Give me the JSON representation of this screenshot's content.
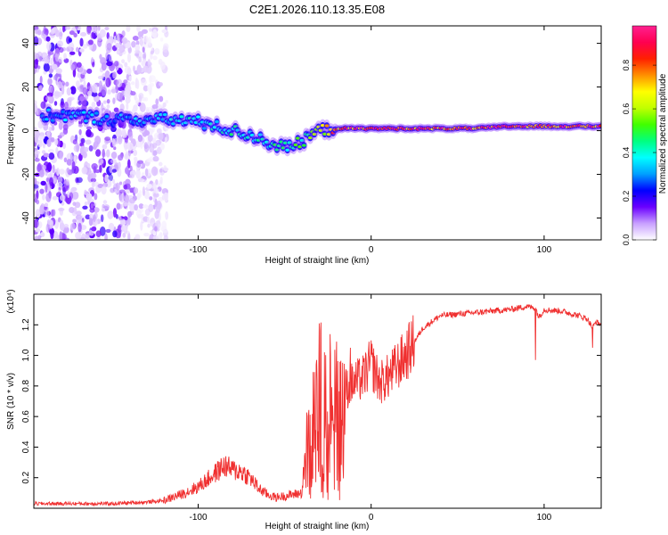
{
  "figure_title": "C2E1.2026.110.13.35.E08",
  "chart_data": [
    {
      "type": "heatmap",
      "title": "C2E1.2026.110.13.35.E08",
      "xlabel": "Height of straight line (km)",
      "ylabel": "Frequency (Hz)",
      "xlim": [
        -195,
        133
      ],
      "ylim": [
        -50,
        48
      ],
      "xticks": [
        -100,
        0,
        100
      ],
      "xtick_labels": [
        "-100",
        "0",
        "100"
      ],
      "yticks": [
        -40,
        -20,
        0,
        20,
        40
      ],
      "ytick_labels": [
        "-40",
        "-20",
        "0",
        "20",
        "40"
      ],
      "colorbar": {
        "label": "Normalized spectral amplitude",
        "range": [
          0,
          0.98
        ],
        "ticks": [
          0.0,
          0.2,
          0.4,
          0.6,
          0.8
        ],
        "tick_labels": [
          "0.0",
          "0.2",
          "0.4",
          "0.6",
          "0.8"
        ],
        "colormap": [
          "#ffffff",
          "#c8a0ff",
          "#6a00ff",
          "#0000ff",
          "#00a0ff",
          "#00ffff",
          "#00ff80",
          "#40ff00",
          "#c0ff00",
          "#ffff00",
          "#ff9000",
          "#ff2000",
          "#ff0050",
          "#ff2090"
        ]
      },
      "ridge_x": [
        -190,
        -175,
        -160,
        -150,
        -140,
        -130,
        -120,
        -110,
        -100,
        -90,
        -80,
        -70,
        -60,
        -50,
        -45,
        -40,
        -35,
        -30,
        -20,
        -10,
        0,
        10,
        20,
        40,
        60,
        80,
        100,
        120,
        133
      ],
      "ridge_freq": [
        7,
        7,
        6,
        5,
        5,
        5,
        5,
        5,
        4,
        2,
        0,
        -2,
        -5,
        -8,
        -7,
        -5,
        -2,
        0,
        1,
        1,
        1,
        1,
        1,
        1,
        1,
        2,
        2,
        2,
        2
      ],
      "ridge_amplitude": [
        0.3,
        0.35,
        0.35,
        0.3,
        0.35,
        0.35,
        0.35,
        0.4,
        0.4,
        0.4,
        0.45,
        0.45,
        0.45,
        0.5,
        0.5,
        0.5,
        0.55,
        0.65,
        0.85,
        0.9,
        0.95,
        0.95,
        0.95,
        0.9,
        0.9,
        0.95,
        0.95,
        0.9,
        0.9
      ],
      "noise_region_x": [
        -195,
        -118
      ]
    },
    {
      "type": "line",
      "title": "",
      "xlabel": "Height of straight line (km)",
      "ylabel": "SNR (10 * v/v)",
      "y_multiplier": "(x10⁴)",
      "xlim": [
        -195,
        133
      ],
      "ylim": [
        0,
        1.4
      ],
      "xticks": [
        -100,
        0,
        100
      ],
      "xtick_labels": [
        "-100",
        "0",
        "100"
      ],
      "yticks": [
        0.2,
        0.4,
        0.6,
        0.8,
        1.0,
        1.2
      ],
      "ytick_labels": [
        "0.2",
        "0.4",
        "0.6",
        "0.8",
        "1.0",
        "1.2"
      ],
      "line_color": "#f03030",
      "series": [
        {
          "name": "SNR",
          "x": [
            -195,
            -150,
            -130,
            -120,
            -110,
            -100,
            -90,
            -85,
            -80,
            -75,
            -70,
            -65,
            -60,
            -55,
            -50,
            -45,
            -40,
            -38,
            -35,
            -30,
            -28,
            -25,
            -20,
            -15,
            -10,
            -5,
            0,
            5,
            10,
            20,
            30,
            40,
            60,
            80,
            90,
            95,
            97,
            100,
            110,
            120,
            125,
            128,
            130,
            133
          ],
          "values": [
            0.03,
            0.03,
            0.04,
            0.05,
            0.09,
            0.14,
            0.23,
            0.28,
            0.25,
            0.24,
            0.2,
            0.13,
            0.09,
            0.07,
            0.08,
            0.09,
            0.1,
            0.4,
            0.55,
            0.75,
            0.9,
            0.8,
            0.75,
            0.78,
            0.82,
            0.85,
            0.95,
            0.82,
            0.86,
            1.0,
            1.18,
            1.26,
            1.28,
            1.3,
            1.32,
            1.31,
            1.25,
            1.3,
            1.29,
            1.26,
            1.24,
            1.18,
            1.22,
            1.2
          ]
        }
      ],
      "spikes": [
        {
          "x": -30,
          "y": 1.21
        },
        {
          "x": -27,
          "y": 1.02
        },
        {
          "x": -20,
          "y": 1.09
        },
        {
          "x": -12,
          "y": 1.05
        },
        {
          "x": 95,
          "y": 0.97
        },
        {
          "x": 128,
          "y": 1.05
        }
      ]
    }
  ]
}
